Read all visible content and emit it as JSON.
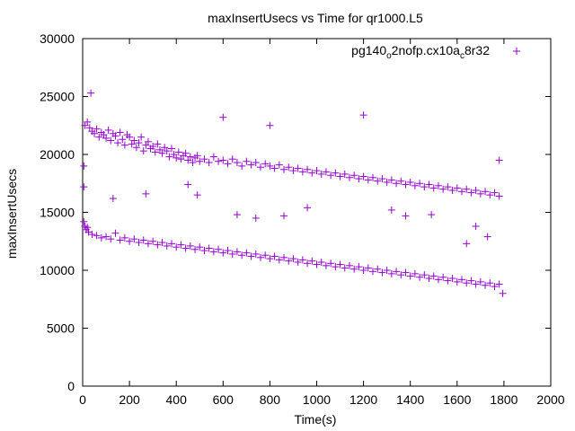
{
  "chart_data": {
    "type": "scatter",
    "title": "maxInsertUsecs vs Time for qr1000.L5",
    "xlabel": "Time(s)",
    "ylabel": "maxInsertUsecs",
    "xlim": [
      0,
      2000
    ],
    "ylim": [
      0,
      30000
    ],
    "xticks": [
      "0",
      "200",
      "400",
      "600",
      "800",
      "1000",
      "1200",
      "1400",
      "1600",
      "1800",
      "2000"
    ],
    "yticks": [
      "0",
      "5000",
      "10000",
      "15000",
      "20000",
      "25000",
      "30000"
    ],
    "grid": false,
    "legend_position": "top-right",
    "marker": "+",
    "series": [
      {
        "name_parts": [
          "pg140",
          "o",
          "2nofp.cx10a",
          "c",
          "8r32"
        ],
        "color": "#9400d3",
        "upper_band": [
          [
            10,
            22500
          ],
          [
            20,
            22800
          ],
          [
            30,
            22300
          ],
          [
            40,
            22000
          ],
          [
            50,
            21800
          ],
          [
            60,
            22200
          ],
          [
            70,
            21500
          ],
          [
            80,
            21900
          ],
          [
            90,
            21700
          ],
          [
            100,
            21400
          ],
          [
            110,
            22100
          ],
          [
            120,
            21200
          ],
          [
            130,
            21800
          ],
          [
            140,
            21600
          ],
          [
            150,
            21000
          ],
          [
            160,
            21900
          ],
          [
            170,
            21300
          ],
          [
            180,
            20800
          ],
          [
            190,
            21700
          ],
          [
            200,
            21500
          ],
          [
            210,
            20900
          ],
          [
            220,
            21200
          ],
          [
            230,
            20600
          ],
          [
            240,
            21000
          ],
          [
            250,
            21500
          ],
          [
            260,
            20300
          ],
          [
            270,
            20800
          ],
          [
            280,
            21100
          ],
          [
            290,
            20500
          ],
          [
            300,
            20700
          ],
          [
            310,
            20200
          ],
          [
            320,
            20900
          ],
          [
            330,
            20400
          ],
          [
            340,
            20100
          ],
          [
            350,
            20600
          ],
          [
            360,
            20300
          ],
          [
            370,
            19800
          ],
          [
            380,
            20500
          ],
          [
            390,
            20000
          ],
          [
            400,
            19700
          ],
          [
            410,
            20200
          ],
          [
            420,
            19600
          ],
          [
            430,
            19900
          ],
          [
            440,
            20100
          ],
          [
            450,
            19500
          ],
          [
            460,
            19800
          ],
          [
            470,
            19300
          ],
          [
            480,
            19700
          ],
          [
            490,
            19900
          ],
          [
            500,
            19400
          ],
          [
            520,
            19600
          ],
          [
            540,
            19300
          ],
          [
            560,
            19800
          ],
          [
            580,
            19400
          ],
          [
            600,
            19500
          ],
          [
            620,
            19200
          ],
          [
            640,
            19600
          ],
          [
            660,
            19300
          ],
          [
            680,
            19000
          ],
          [
            700,
            19400
          ],
          [
            720,
            19100
          ],
          [
            740,
            19300
          ],
          [
            760,
            18900
          ],
          [
            780,
            19200
          ],
          [
            800,
            19000
          ],
          [
            820,
            18800
          ],
          [
            840,
            19100
          ],
          [
            860,
            18700
          ],
          [
            880,
            18900
          ],
          [
            900,
            18600
          ],
          [
            920,
            18800
          ],
          [
            940,
            18500
          ],
          [
            960,
            18700
          ],
          [
            980,
            18400
          ],
          [
            1000,
            18600
          ],
          [
            1020,
            18300
          ],
          [
            1040,
            18500
          ],
          [
            1060,
            18200
          ],
          [
            1080,
            18400
          ],
          [
            1100,
            18100
          ],
          [
            1120,
            18300
          ],
          [
            1140,
            18000
          ],
          [
            1160,
            18200
          ],
          [
            1180,
            17900
          ],
          [
            1200,
            18100
          ],
          [
            1220,
            17800
          ],
          [
            1240,
            18000
          ],
          [
            1260,
            17700
          ],
          [
            1280,
            17900
          ],
          [
            1300,
            17600
          ],
          [
            1320,
            17800
          ],
          [
            1340,
            17500
          ],
          [
            1360,
            17700
          ],
          [
            1380,
            17400
          ],
          [
            1400,
            17600
          ],
          [
            1420,
            17300
          ],
          [
            1440,
            17500
          ],
          [
            1460,
            17200
          ],
          [
            1480,
            17400
          ],
          [
            1500,
            17100
          ],
          [
            1520,
            17300
          ],
          [
            1540,
            17000
          ],
          [
            1560,
            17200
          ],
          [
            1580,
            16900
          ],
          [
            1600,
            17100
          ],
          [
            1620,
            16800
          ],
          [
            1640,
            17000
          ],
          [
            1660,
            16700
          ],
          [
            1680,
            16900
          ],
          [
            1700,
            16600
          ],
          [
            1720,
            16800
          ],
          [
            1740,
            16500
          ],
          [
            1760,
            16700
          ],
          [
            1780,
            16400
          ]
        ],
        "lower_band": [
          [
            5,
            14200
          ],
          [
            10,
            13800
          ],
          [
            15,
            13500
          ],
          [
            20,
            13700
          ],
          [
            25,
            13300
          ],
          [
            40,
            13100
          ],
          [
            60,
            13000
          ],
          [
            80,
            12800
          ],
          [
            100,
            12900
          ],
          [
            120,
            12700
          ],
          [
            140,
            13200
          ],
          [
            160,
            12600
          ],
          [
            180,
            12800
          ],
          [
            200,
            12500
          ],
          [
            220,
            12700
          ],
          [
            240,
            12400
          ],
          [
            260,
            12600
          ],
          [
            280,
            12300
          ],
          [
            300,
            12500
          ],
          [
            320,
            12200
          ],
          [
            340,
            12400
          ],
          [
            360,
            12100
          ],
          [
            380,
            12300
          ],
          [
            400,
            12000
          ],
          [
            420,
            12200
          ],
          [
            440,
            11900
          ],
          [
            460,
            12100
          ],
          [
            480,
            11800
          ],
          [
            500,
            12000
          ],
          [
            520,
            11700
          ],
          [
            540,
            11900
          ],
          [
            560,
            11600
          ],
          [
            580,
            11800
          ],
          [
            600,
            11500
          ],
          [
            620,
            11700
          ],
          [
            640,
            11400
          ],
          [
            660,
            11600
          ],
          [
            680,
            11300
          ],
          [
            700,
            11500
          ],
          [
            720,
            11200
          ],
          [
            740,
            11400
          ],
          [
            760,
            11100
          ],
          [
            780,
            11300
          ],
          [
            800,
            11000
          ],
          [
            820,
            11200
          ],
          [
            840,
            10900
          ],
          [
            860,
            11100
          ],
          [
            880,
            10800
          ],
          [
            900,
            11000
          ],
          [
            920,
            10700
          ],
          [
            940,
            10900
          ],
          [
            960,
            10600
          ],
          [
            980,
            10800
          ],
          [
            1000,
            10500
          ],
          [
            1020,
            10700
          ],
          [
            1040,
            10400
          ],
          [
            1060,
            10600
          ],
          [
            1080,
            10300
          ],
          [
            1100,
            10500
          ],
          [
            1120,
            10200
          ],
          [
            1140,
            10400
          ],
          [
            1160,
            10100
          ],
          [
            1180,
            10300
          ],
          [
            1200,
            10000
          ],
          [
            1220,
            10200
          ],
          [
            1240,
            9900
          ],
          [
            1260,
            10100
          ],
          [
            1280,
            9800
          ],
          [
            1300,
            10000
          ],
          [
            1320,
            9700
          ],
          [
            1340,
            9900
          ],
          [
            1360,
            9600
          ],
          [
            1380,
            9800
          ],
          [
            1400,
            9500
          ],
          [
            1420,
            9700
          ],
          [
            1440,
            9400
          ],
          [
            1460,
            9600
          ],
          [
            1480,
            9300
          ],
          [
            1500,
            9500
          ],
          [
            1520,
            9200
          ],
          [
            1540,
            9400
          ],
          [
            1560,
            9100
          ],
          [
            1580,
            9300
          ],
          [
            1600,
            9000
          ],
          [
            1620,
            9200
          ],
          [
            1640,
            8900
          ],
          [
            1660,
            9100
          ],
          [
            1680,
            8800
          ],
          [
            1700,
            9000
          ],
          [
            1720,
            8700
          ],
          [
            1740,
            8900
          ],
          [
            1760,
            8600
          ],
          [
            1780,
            8800
          ],
          [
            1795,
            8000
          ]
        ],
        "outliers": [
          [
            35,
            25300
          ],
          [
            5,
            17200
          ],
          [
            5,
            19000
          ],
          [
            130,
            16200
          ],
          [
            270,
            16600
          ],
          [
            450,
            17400
          ],
          [
            490,
            16500
          ],
          [
            660,
            14800
          ],
          [
            740,
            14500
          ],
          [
            860,
            14700
          ],
          [
            960,
            15400
          ],
          [
            1320,
            15200
          ],
          [
            1380,
            14700
          ],
          [
            1490,
            14800
          ],
          [
            1640,
            12300
          ],
          [
            1680,
            13800
          ],
          [
            1730,
            12900
          ],
          [
            1780,
            19500
          ],
          [
            1200,
            23400
          ],
          [
            600,
            23200
          ],
          [
            800,
            22500
          ]
        ]
      }
    ]
  }
}
